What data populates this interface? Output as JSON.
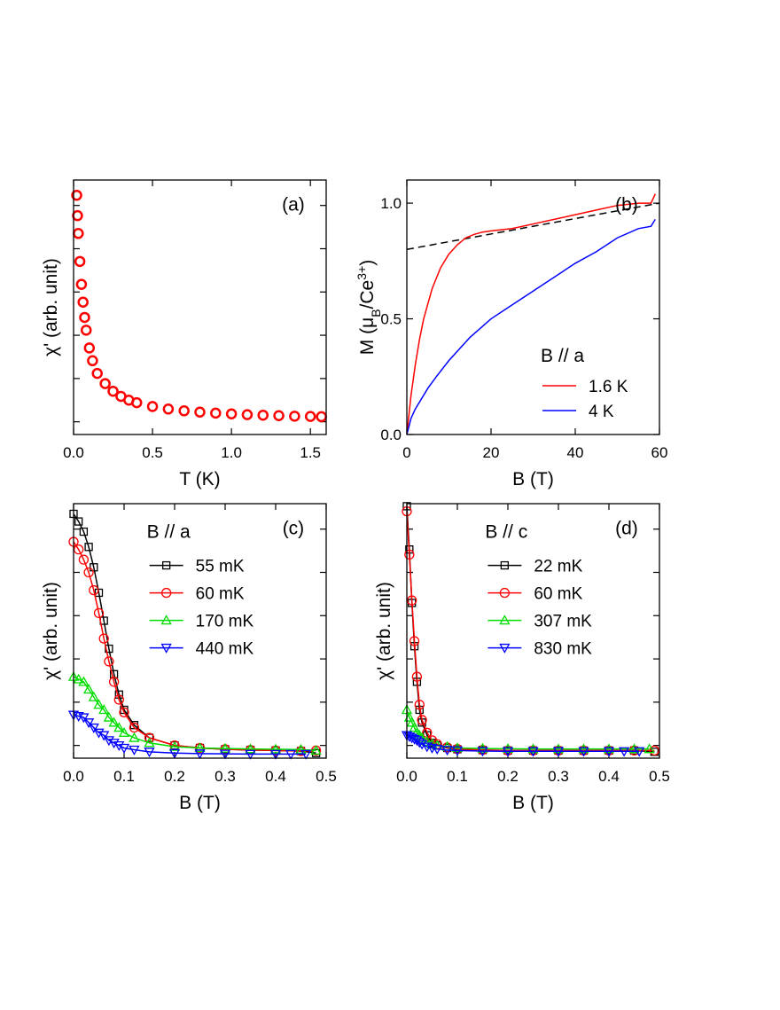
{
  "chart_data": [
    {
      "type": "scatter",
      "panel_label": "(a)",
      "xlabel": "T (K)",
      "ylabel": "χ' (arb. unit)",
      "xlim": [
        0,
        1.6
      ],
      "xticks": [
        {
          "value": 0,
          "label": "0.0"
        },
        0.5,
        {
          "value": 1,
          "label": "1.0"
        },
        1.5
      ],
      "ylim": [
        0,
        1
      ],
      "yticks": [
        0.05,
        0.22,
        0.39,
        0.56,
        0.73,
        0.9
      ],
      "ytick_labels": false,
      "series": [
        {
          "color": "#ff0000",
          "marker": "circle",
          "x": [
            0.02,
            0.025,
            0.03,
            0.04,
            0.05,
            0.06,
            0.07,
            0.08,
            0.1,
            0.12,
            0.15,
            0.2,
            0.25,
            0.3,
            0.35,
            0.4,
            0.5,
            0.6,
            0.7,
            0.8,
            0.9,
            1.0,
            1.1,
            1.2,
            1.3,
            1.4,
            1.5,
            1.57
          ],
          "values": [
            0.94,
            0.86,
            0.79,
            0.68,
            0.59,
            0.52,
            0.46,
            0.41,
            0.34,
            0.29,
            0.24,
            0.2,
            0.17,
            0.15,
            0.135,
            0.125,
            0.11,
            0.1,
            0.093,
            0.088,
            0.084,
            0.081,
            0.078,
            0.076,
            0.074,
            0.072,
            0.071,
            0.07
          ]
        }
      ]
    },
    {
      "type": "line",
      "panel_label": "(b)",
      "xlabel": "B (T)",
      "ylabel": [
        {
          "text": "M (μ",
          "script": "normal"
        },
        {
          "text": "B",
          "script": "sub"
        },
        {
          "text": "/Ce",
          "script": "normal"
        },
        {
          "text": "3+",
          "script": "sup"
        },
        {
          "text": ")",
          "script": "normal"
        }
      ],
      "xlim": [
        0,
        60
      ],
      "xticks": [
        0,
        20,
        40,
        60
      ],
      "ylim": [
        0,
        1.1
      ],
      "yticks": [
        {
          "value": 0,
          "label": "0.0"
        },
        0.5,
        {
          "value": 1,
          "label": "1.0"
        }
      ],
      "ytick_labels": true,
      "legend": "lower right",
      "legend_title": "B // a",
      "reference_line": {
        "x": [
          0,
          60
        ],
        "values": [
          0.8,
          1.0
        ],
        "color": "#000000",
        "dashed": true
      },
      "series": [
        {
          "name": "1.6 K",
          "color": "#ff0000",
          "marker": "none",
          "x": [
            0,
            1,
            2,
            3,
            4,
            6,
            8,
            10,
            12,
            14,
            16,
            18,
            20,
            25,
            30,
            35,
            40,
            45,
            50,
            55,
            58,
            59
          ],
          "values": [
            0,
            0.17,
            0.3,
            0.41,
            0.5,
            0.63,
            0.72,
            0.78,
            0.82,
            0.85,
            0.865,
            0.875,
            0.88,
            0.89,
            0.91,
            0.93,
            0.95,
            0.97,
            0.99,
            1.0,
            1.0,
            1.04
          ]
        },
        {
          "name": "4 K",
          "color": "#0000ff",
          "marker": "none",
          "x": [
            0,
            1,
            2,
            3,
            5,
            7,
            10,
            15,
            20,
            25,
            30,
            35,
            40,
            45,
            50,
            55,
            58,
            59
          ],
          "values": [
            0,
            0.07,
            0.11,
            0.14,
            0.2,
            0.25,
            0.32,
            0.42,
            0.5,
            0.56,
            0.62,
            0.68,
            0.74,
            0.79,
            0.85,
            0.89,
            0.9,
            0.93
          ]
        }
      ]
    },
    {
      "type": "line",
      "panel_label": "(c)",
      "xlabel": "B (T)",
      "ylabel": "χ' (arb. unit)",
      "xlim": [
        0,
        0.5
      ],
      "xticks": [
        {
          "value": 0,
          "label": "0.0"
        },
        0.1,
        0.2,
        0.3,
        0.4,
        0.5
      ],
      "ylim": [
        0,
        1
      ],
      "yticks": [
        0.05,
        0.22,
        0.39,
        0.56,
        0.73,
        0.9
      ],
      "ytick_labels": false,
      "legend": "upper right",
      "legend_title": "B // a",
      "series": [
        {
          "name": "55 mK",
          "color": "#000000",
          "marker": "square",
          "x": [
            0,
            0.01,
            0.02,
            0.03,
            0.04,
            0.05,
            0.06,
            0.07,
            0.08,
            0.09,
            0.1,
            0.12,
            0.15,
            0.2,
            0.25,
            0.3,
            0.35,
            0.4,
            0.45,
            0.48
          ],
          "values": [
            0.96,
            0.93,
            0.89,
            0.83,
            0.75,
            0.65,
            0.54,
            0.43,
            0.33,
            0.25,
            0.19,
            0.13,
            0.08,
            0.05,
            0.04,
            0.035,
            0.032,
            0.03,
            0.028,
            0.02
          ]
        },
        {
          "name": "60 mK",
          "color": "#ff0000",
          "marker": "circle",
          "x": [
            0,
            0.01,
            0.02,
            0.03,
            0.04,
            0.05,
            0.06,
            0.07,
            0.08,
            0.09,
            0.1,
            0.12,
            0.15,
            0.2,
            0.25,
            0.3,
            0.35,
            0.4,
            0.45,
            0.48
          ],
          "values": [
            0.85,
            0.82,
            0.78,
            0.73,
            0.66,
            0.57,
            0.47,
            0.38,
            0.3,
            0.23,
            0.18,
            0.12,
            0.08,
            0.05,
            0.04,
            0.035,
            0.032,
            0.03,
            0.028,
            0.03
          ]
        },
        {
          "name": "170 mK",
          "color": "#00dd00",
          "marker": "triangle-up",
          "x": [
            0,
            0.01,
            0.02,
            0.03,
            0.04,
            0.05,
            0.06,
            0.07,
            0.08,
            0.09,
            0.1,
            0.12,
            0.15,
            0.2,
            0.25,
            0.3,
            0.35,
            0.4,
            0.45,
            0.48
          ],
          "values": [
            0.32,
            0.31,
            0.3,
            0.27,
            0.24,
            0.21,
            0.19,
            0.16,
            0.14,
            0.12,
            0.1,
            0.08,
            0.06,
            0.045,
            0.04,
            0.038,
            0.036,
            0.035,
            0.034,
            0.03
          ]
        },
        {
          "name": "440 mK",
          "color": "#0000ff",
          "marker": "triangle-down",
          "x": [
            0,
            0.01,
            0.02,
            0.03,
            0.04,
            0.05,
            0.06,
            0.07,
            0.08,
            0.09,
            0.1,
            0.12,
            0.15,
            0.2,
            0.25,
            0.3,
            0.35,
            0.4,
            0.43,
            0.46
          ],
          "values": [
            0.17,
            0.165,
            0.16,
            0.14,
            0.12,
            0.1,
            0.09,
            0.07,
            0.06,
            0.05,
            0.04,
            0.033,
            0.025,
            0.02,
            0.018,
            0.017,
            0.016,
            0.016,
            0.016,
            0.016
          ]
        }
      ]
    },
    {
      "type": "line",
      "panel_label": "(d)",
      "xlabel": "B (T)",
      "ylabel": "χ' (arb. unit)",
      "xlim": [
        0,
        0.5
      ],
      "xticks": [
        {
          "value": 0,
          "label": "0.0"
        },
        0.1,
        0.2,
        0.3,
        0.4,
        0.5
      ],
      "ylim": [
        0,
        1
      ],
      "yticks": [
        0.05,
        0.22,
        0.39,
        0.56,
        0.73,
        0.9
      ],
      "ytick_labels": false,
      "legend": "upper right",
      "legend_title": "B // c",
      "series": [
        {
          "name": "22 mK",
          "color": "#000000",
          "marker": "square",
          "x": [
            0,
            0.005,
            0.01,
            0.015,
            0.02,
            0.025,
            0.03,
            0.04,
            0.05,
            0.06,
            0.08,
            0.1,
            0.15,
            0.2,
            0.25,
            0.3,
            0.35,
            0.4,
            0.45,
            0.49
          ],
          "values": [
            0.99,
            0.82,
            0.61,
            0.44,
            0.3,
            0.19,
            0.14,
            0.09,
            0.06,
            0.05,
            0.04,
            0.035,
            0.032,
            0.03,
            0.03,
            0.03,
            0.03,
            0.03,
            0.03,
            0.025
          ]
        },
        {
          "name": "60 mK",
          "color": "#ff0000",
          "marker": "circle",
          "x": [
            0,
            0.005,
            0.01,
            0.015,
            0.02,
            0.025,
            0.03,
            0.04,
            0.05,
            0.06,
            0.08,
            0.1,
            0.15,
            0.2,
            0.25,
            0.3,
            0.35,
            0.4,
            0.45,
            0.49
          ],
          "values": [
            0.97,
            0.8,
            0.62,
            0.46,
            0.32,
            0.21,
            0.15,
            0.1,
            0.07,
            0.055,
            0.042,
            0.036,
            0.032,
            0.03,
            0.03,
            0.03,
            0.03,
            0.03,
            0.03,
            0.03
          ]
        },
        {
          "name": "307 mK",
          "color": "#00dd00",
          "marker": "triangle-up",
          "x": [
            0,
            0.005,
            0.01,
            0.015,
            0.02,
            0.025,
            0.03,
            0.04,
            0.05,
            0.06,
            0.08,
            0.1,
            0.15,
            0.2,
            0.25,
            0.3,
            0.35,
            0.4,
            0.45,
            0.48
          ],
          "values": [
            0.19,
            0.16,
            0.14,
            0.12,
            0.1,
            0.09,
            0.08,
            0.065,
            0.055,
            0.05,
            0.045,
            0.04,
            0.038,
            0.037,
            0.036,
            0.036,
            0.036,
            0.036,
            0.036,
            0.036
          ]
        },
        {
          "name": "830 mK",
          "color": "#0000ff",
          "marker": "triangle-down",
          "x": [
            0,
            0.005,
            0.01,
            0.015,
            0.02,
            0.025,
            0.03,
            0.04,
            0.05,
            0.06,
            0.08,
            0.1,
            0.15,
            0.2,
            0.25,
            0.3,
            0.35,
            0.4,
            0.43,
            0.46
          ],
          "values": [
            0.09,
            0.085,
            0.08,
            0.075,
            0.07,
            0.062,
            0.055,
            0.045,
            0.04,
            0.036,
            0.032,
            0.03,
            0.028,
            0.027,
            0.027,
            0.027,
            0.027,
            0.027,
            0.027,
            0.027
          ]
        }
      ]
    }
  ]
}
